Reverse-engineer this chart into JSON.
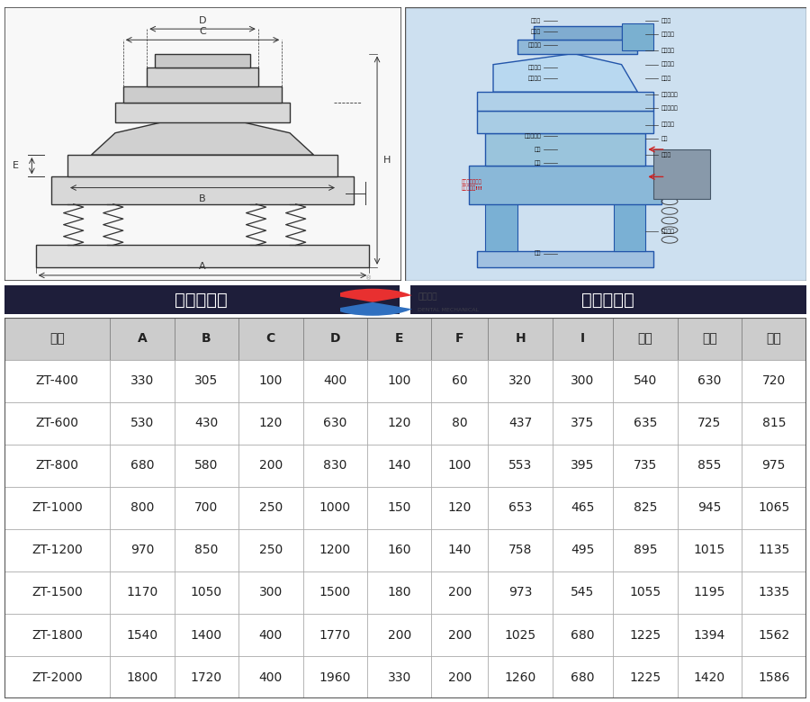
{
  "header_left": "外形尺寸图",
  "header_right": "一般结构图",
  "table_header": [
    "型号",
    "A",
    "B",
    "C",
    "D",
    "E",
    "F",
    "H",
    "I",
    "一层",
    "二层",
    "三层"
  ],
  "table_data": [
    [
      "ZT-400",
      "330",
      "305",
      "100",
      "400",
      "100",
      "60",
      "320",
      "300",
      "540",
      "630",
      "720"
    ],
    [
      "ZT-600",
      "530",
      "430",
      "120",
      "630",
      "120",
      "80",
      "437",
      "375",
      "635",
      "725",
      "815"
    ],
    [
      "ZT-800",
      "680",
      "580",
      "200",
      "830",
      "140",
      "100",
      "553",
      "395",
      "735",
      "855",
      "975"
    ],
    [
      "ZT-1000",
      "800",
      "700",
      "250",
      "1000",
      "150",
      "120",
      "653",
      "465",
      "825",
      "945",
      "1065"
    ],
    [
      "ZT-1200",
      "970",
      "850",
      "250",
      "1200",
      "160",
      "140",
      "758",
      "495",
      "895",
      "1015",
      "1135"
    ],
    [
      "ZT-1500",
      "1170",
      "1050",
      "300",
      "1500",
      "180",
      "200",
      "973",
      "545",
      "1055",
      "1195",
      "1335"
    ],
    [
      "ZT-1800",
      "1540",
      "1400",
      "400",
      "1770",
      "200",
      "200",
      "1025",
      "680",
      "1225",
      "1394",
      "1562"
    ],
    [
      "ZT-2000",
      "1800",
      "1720",
      "400",
      "1960",
      "330",
      "200",
      "1260",
      "680",
      "1225",
      "1420",
      "1586"
    ]
  ],
  "section_bg": "#1e1e3a",
  "section_text": "#ffffff",
  "col_header_bg": "#cccccc",
  "col_header_text": "#222222",
  "table_border": "#888888",
  "row_bg": "#ffffff",
  "page_bg": "#ffffff",
  "left_diagram_bg": "#f8f8f8",
  "right_diagram_bg": "#cde0f0",
  "logo_color1": "#e83030",
  "logo_color2": "#3070c0"
}
